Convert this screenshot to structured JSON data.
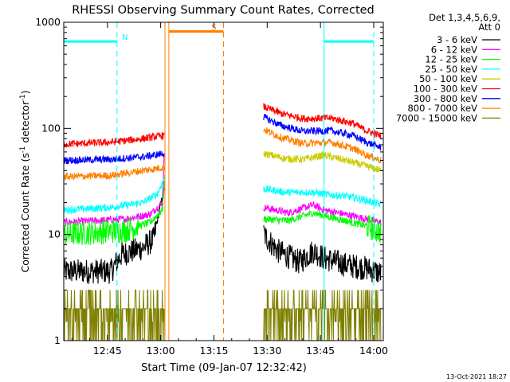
{
  "chart_data": {
    "type": "line",
    "title": "RHESSI Observing Summary Count Rates, Corrected",
    "xlabel": "Start Time (09-Jan-07 12:32:42)",
    "ylabel_main": "Corrected Count Rate (s",
    "ylabel_sup1": "-1",
    "ylabel_mid": " detector",
    "ylabel_sup2": "-1",
    "ylabel_end": ")",
    "y_scale": "log",
    "xlim_minutes": [
      752.7,
      842.7
    ],
    "ylim": [
      1,
      1000
    ],
    "x_ticks": [
      {
        "label": "12:45",
        "minutes": 765
      },
      {
        "label": "13:00",
        "minutes": 780
      },
      {
        "label": "13:15",
        "minutes": 795
      },
      {
        "label": "13:30",
        "minutes": 810
      },
      {
        "label": "13:45",
        "minutes": 825
      },
      {
        "label": "14:00",
        "minutes": 840
      }
    ],
    "y_ticks": [
      {
        "label": "1",
        "value": 1
      },
      {
        "label": "10",
        "value": 10
      },
      {
        "label": "100",
        "value": 100
      },
      {
        "label": "1000",
        "value": 1000
      }
    ],
    "legend_header_1": "Det 1,3,4,5,6,9,",
    "legend_header_2": "Att 0",
    "legend_position": "right",
    "series": [
      {
        "name": "3 - 6 keV",
        "color": "#000000",
        "pre": {
          "x": [
            752.7,
            766.0,
            769.0,
            775.0,
            778.0,
            781.0
          ],
          "y": [
            4.5,
            4.5,
            6.5,
            7.5,
            9.0,
            28.0
          ]
        },
        "post": {
          "x": [
            809.0,
            813.0,
            819.0,
            823.0,
            826.0,
            832.0,
            838.0,
            842.0
          ],
          "y": [
            10.0,
            7.0,
            5.5,
            7.0,
            6.0,
            5.2,
            4.8,
            4.3
          ]
        }
      },
      {
        "name": "6 - 12 keV",
        "color": "#ff00ff",
        "pre": {
          "x": [
            752.7,
            770.0,
            777.0,
            780.5,
            781.0
          ],
          "y": [
            13.0,
            14.0,
            15.5,
            20.0,
            55.0
          ]
        },
        "post": {
          "x": [
            809.0,
            816.0,
            823.0,
            826.0,
            832.0,
            838.0,
            842.0
          ],
          "y": [
            18.0,
            16.0,
            19.0,
            17.0,
            15.5,
            14.0,
            13.0
          ]
        }
      },
      {
        "name": "12 - 25 keV",
        "color": "#00ff00",
        "pre": {
          "x": [
            752.7,
            770.0,
            777.0,
            780.5,
            781.0
          ],
          "y": [
            10.0,
            11.0,
            13.0,
            17.0,
            30.0
          ]
        },
        "post": {
          "x": [
            809.0,
            816.0,
            823.0,
            826.0,
            832.0,
            838.0,
            842.0
          ],
          "y": [
            14.0,
            13.5,
            16.0,
            15.0,
            13.5,
            12.0,
            10.5
          ]
        }
      },
      {
        "name": "25 - 50 keV",
        "color": "#00ffff",
        "pre": {
          "x": [
            752.7,
            766.0,
            775.0,
            779.0,
            781.0
          ],
          "y": [
            17.0,
            18.0,
            20.0,
            24.0,
            34.0
          ]
        },
        "post": {
          "x": [
            809.0,
            815.0,
            823.0,
            826.0,
            832.0,
            838.0,
            842.0
          ],
          "y": [
            27.0,
            25.0,
            25.0,
            24.0,
            23.0,
            21.0,
            19.0
          ]
        }
      },
      {
        "name": "50 - 100 keV",
        "color": "#cccc00",
        "post": {
          "x": [
            809.0,
            815.0,
            820.0,
            826.0,
            832.0,
            838.0,
            842.0
          ],
          "y": [
            58.0,
            52.0,
            51.0,
            56.0,
            50.0,
            44.0,
            40.0
          ]
        }
      },
      {
        "name": "100 - 300 keV",
        "color": "#ff0000",
        "pre": {
          "x": [
            752.7,
            766.0,
            775.0,
            781.0
          ],
          "y": [
            71.0,
            74.0,
            80.0,
            86.0
          ]
        },
        "post": {
          "x": [
            809.0,
            814.0,
            820.0,
            828.0,
            834.0,
            838.0,
            842.0
          ],
          "y": [
            160.0,
            138.0,
            124.0,
            125.0,
            112.0,
            95.0,
            85.0
          ]
        }
      },
      {
        "name": "300 - 800 keV",
        "color": "#0000ff",
        "pre": {
          "x": [
            752.7,
            766.0,
            775.0,
            781.0
          ],
          "y": [
            50.0,
            51.0,
            54.0,
            58.0
          ]
        },
        "post": {
          "x": [
            809.0,
            814.0,
            820.0,
            828.0,
            834.0,
            838.0,
            842.0
          ],
          "y": [
            128.0,
            106.0,
            94.0,
            95.0,
            86.0,
            74.0,
            66.0
          ]
        }
      },
      {
        "name": "800 - 7000 keV",
        "color": "#ff8000",
        "pre": {
          "x": [
            752.7,
            766.0,
            775.0,
            781.0
          ],
          "y": [
            35.0,
            36.0,
            40.0,
            43.0
          ]
        },
        "post": {
          "x": [
            809.0,
            814.0,
            820.0,
            828.0,
            834.0,
            838.0,
            842.0
          ],
          "y": [
            98.0,
            82.0,
            72.0,
            74.0,
            65.0,
            56.0,
            50.0
          ]
        }
      },
      {
        "name": "7000 - 15000 keV",
        "color": "#808000",
        "pre": {
          "x": [
            752.7,
            781.0
          ],
          "y": [
            2.0,
            2.0
          ]
        },
        "post": {
          "x": [
            809.0,
            826.0,
            842.0
          ],
          "y": [
            2.0,
            2.2,
            1.6
          ]
        }
      }
    ],
    "flag_lines": [
      {
        "id": "N",
        "label": "N",
        "color": "#00ffff",
        "level": 660,
        "ranges": [
          [
            752.7,
            767.7
          ],
          [
            826.0,
            840.0
          ]
        ],
        "dashed_lines_minutes": [
          767.7,
          840.0
        ],
        "solid_lines_minutes": [
          826.0
        ]
      },
      {
        "id": "S",
        "label": "S",
        "color": "#ff8000",
        "level": 820,
        "ranges": [
          [
            782.3,
            797.7
          ]
        ],
        "dashed_lines_minutes": [
          797.7
        ],
        "solid_lines_minutes": [
          781.2,
          782.3
        ]
      }
    ]
  },
  "footer_date": "13-Oct-2021 18:27"
}
